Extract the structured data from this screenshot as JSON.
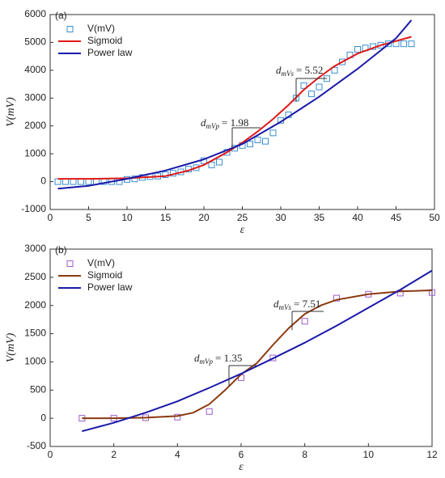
{
  "chart_data": [
    {
      "type": "line",
      "panel_label": "(a)",
      "x_label": "ε",
      "y_label": "V(mV)",
      "xlim": [
        0,
        50
      ],
      "xticks": [
        0,
        5,
        10,
        15,
        20,
        25,
        30,
        35,
        40,
        45,
        50
      ],
      "ylim": [
        -1000,
        6000
      ],
      "yticks": [
        -1000,
        0,
        1000,
        2000,
        3000,
        4000,
        5000,
        6000
      ],
      "legend": "upper left",
      "series": [
        {
          "name": "V(mV)",
          "style": "marker",
          "color": "#3a8fd0",
          "x": [
            1,
            2,
            3,
            4,
            5,
            6,
            7,
            8,
            9,
            10,
            11,
            12,
            13,
            14,
            15,
            16,
            17,
            18,
            19,
            20,
            21,
            22,
            23,
            24,
            25,
            26,
            27,
            28,
            29,
            30,
            31,
            32,
            33,
            34,
            35,
            36,
            37,
            38,
            39,
            40,
            41,
            42,
            43,
            44,
            45,
            46,
            47
          ],
          "values": [
            0,
            0,
            0,
            0,
            0,
            0,
            0,
            0,
            0,
            80,
            100,
            150,
            180,
            200,
            250,
            300,
            350,
            450,
            500,
            750,
            600,
            700,
            1050,
            1200,
            1300,
            1350,
            1500,
            1450,
            1750,
            2200,
            2400,
            3000,
            3450,
            3150,
            3400,
            3700,
            4000,
            4300,
            4550,
            4750,
            4800,
            4850,
            4900,
            4950,
            4950,
            4950,
            4950
          ]
        },
        {
          "name": "Sigmoid",
          "style": "line",
          "color": "#e01818",
          "x": [
            1,
            5,
            10,
            15,
            18,
            20,
            23,
            25,
            27,
            29,
            31,
            33,
            35,
            37,
            40,
            43,
            47
          ],
          "values": [
            100,
            100,
            120,
            200,
            400,
            600,
            1050,
            1400,
            1800,
            2250,
            2750,
            3300,
            3750,
            4150,
            4600,
            4900,
            5200
          ]
        },
        {
          "name": "Power law",
          "style": "line",
          "color": "#1a1aa8",
          "x": [
            1,
            5,
            10,
            15,
            20,
            25,
            30,
            35,
            40,
            45,
            47
          ],
          "values": [
            -250,
            -150,
            100,
            400,
            800,
            1350,
            2150,
            3050,
            4050,
            5150,
            5800
          ]
        }
      ],
      "annotations": [
        {
          "symbol": "d",
          "subscript": "mVp",
          "text": "= 1.98"
        },
        {
          "symbol": "d",
          "subscript": "mVs",
          "text": "= 5.52"
        }
      ]
    },
    {
      "type": "line",
      "panel_label": "(b)",
      "x_label": "ε",
      "y_label": "V(mV)",
      "xlim": [
        0,
        12
      ],
      "xticks": [
        0,
        2,
        4,
        6,
        8,
        10,
        12
      ],
      "ylim": [
        -500,
        3000
      ],
      "yticks": [
        -500,
        0,
        500,
        1000,
        1500,
        2000,
        2500,
        3000
      ],
      "legend": "upper left",
      "series": [
        {
          "name": "V(mV)",
          "style": "marker",
          "color": "#9a5ccc",
          "x": [
            1,
            2,
            3,
            4,
            5,
            6,
            7,
            8,
            9,
            10,
            11,
            12
          ],
          "values": [
            0,
            0,
            10,
            20,
            120,
            720,
            1070,
            1720,
            2130,
            2200,
            2220,
            2230
          ]
        },
        {
          "name": "Sigmoid",
          "style": "line",
          "color": "#8b3a10",
          "x": [
            1,
            2,
            3,
            4,
            4.5,
            5,
            5.5,
            6,
            6.5,
            7,
            7.5,
            8,
            8.5,
            9,
            10,
            11,
            12
          ],
          "values": [
            0,
            0,
            10,
            40,
            100,
            250,
            500,
            780,
            980,
            1300,
            1600,
            1850,
            2000,
            2100,
            2200,
            2250,
            2270
          ]
        },
        {
          "name": "Power law",
          "style": "line",
          "color": "#1a1aa8",
          "x": [
            1,
            2,
            3,
            4,
            5,
            6,
            7,
            8,
            9,
            10,
            11,
            12
          ],
          "values": [
            -230,
            -80,
            100,
            300,
            540,
            790,
            1060,
            1340,
            1640,
            1960,
            2280,
            2620
          ]
        }
      ],
      "annotations": [
        {
          "symbol": "d",
          "subscript": "mVp",
          "text": "= 1.35"
        },
        {
          "symbol": "d",
          "subscript": "mVs",
          "text": "= 7.51"
        }
      ]
    }
  ]
}
